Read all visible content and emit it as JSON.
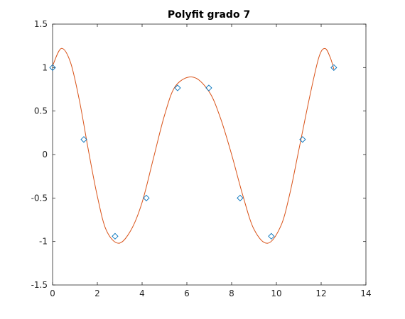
{
  "chart_data": {
    "type": "scatter",
    "title": "Polyfit grado 7",
    "xlabel": "",
    "ylabel": "",
    "xlim": [
      0,
      14
    ],
    "ylim": [
      -1.5,
      1.5
    ],
    "xticks": [
      "0",
      "2",
      "4",
      "6",
      "8",
      "10",
      "12",
      "14"
    ],
    "yticks": [
      "1.5",
      "1",
      "0.5",
      "0",
      "-0.5",
      "-1",
      "-1.5"
    ],
    "grid": false,
    "series": [
      {
        "kind": "markers",
        "marker": "diamond",
        "color": "#0072BD",
        "x": [
          0,
          1.3963,
          2.7925,
          4.1888,
          5.5851,
          6.9813,
          8.3776,
          9.7738,
          11.1701,
          12.5664
        ],
        "y": [
          1.0,
          0.1736,
          -0.9397,
          -0.5,
          0.766,
          0.766,
          -0.5,
          -0.9397,
          0.1736,
          1.0
        ]
      },
      {
        "kind": "line",
        "color": "#D95319",
        "x": [
          0,
          0.39,
          0.8,
          1.2,
          1.6,
          2.0,
          2.4,
          2.95,
          3.5,
          4.0,
          4.5,
          5.0,
          5.5,
          6.28,
          7.0,
          7.5,
          8.0,
          8.5,
          9.0,
          9.61,
          10.2,
          10.6,
          11.0,
          11.5,
          11.9,
          12.17,
          12.4,
          12.57
        ],
        "y": [
          1.02,
          1.22,
          1.06,
          0.62,
          0.05,
          -0.48,
          -0.87,
          -1.02,
          -0.87,
          -0.55,
          -0.05,
          0.45,
          0.79,
          0.89,
          0.72,
          0.42,
          0.0,
          -0.47,
          -0.86,
          -1.02,
          -0.82,
          -0.45,
          0.05,
          0.68,
          1.12,
          1.22,
          1.12,
          0.98
        ]
      }
    ]
  }
}
